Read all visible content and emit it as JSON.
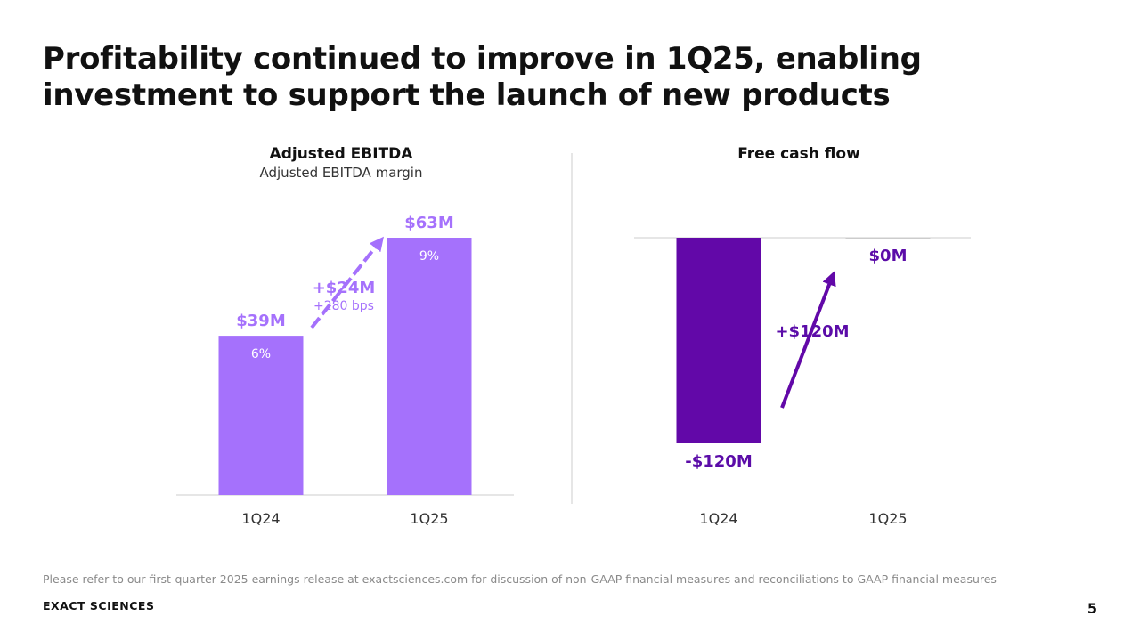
{
  "slide": {
    "title_line1": "Profitability continued to improve in 1Q25, enabling",
    "title_line2": "investment to support the launch of new products",
    "footnote": "Please refer to our first-quarter 2025 earnings release at exactsciences.com for discussion of non-GAAP financial measures and reconciliations to GAAP financial measures",
    "brand": "EXACT SCIENCES",
    "page_number": "5"
  },
  "colors": {
    "ebitda_bar": "#a571fc",
    "ebitda_label": "#a571fc",
    "fcf_bar": "#6208a8",
    "fcf_label": "#5b0ca8",
    "axis": "#cccccc",
    "divider": "#cccccc",
    "tick_text": "#333333"
  },
  "chart_data": [
    {
      "type": "bar",
      "title": "Adjusted EBITDA",
      "subtitle": "Adjusted EBITDA margin",
      "categories": [
        "1Q24",
        "1Q25"
      ],
      "values": [
        39,
        63
      ],
      "unit": "$M",
      "value_labels": [
        "$39M",
        "$63M"
      ],
      "margin_labels": [
        "6%",
        "9%"
      ],
      "ylim": [
        0,
        63
      ],
      "annotation": {
        "change": "+$24M",
        "detail": "+280 bps"
      }
    },
    {
      "type": "bar",
      "title": "Free cash flow",
      "categories": [
        "1Q24",
        "1Q25"
      ],
      "values": [
        -120,
        0
      ],
      "unit": "$M",
      "value_labels": [
        "-$120M",
        "$0M"
      ],
      "ylim": [
        -120,
        0
      ],
      "annotation": {
        "change": "+$120M"
      }
    }
  ]
}
